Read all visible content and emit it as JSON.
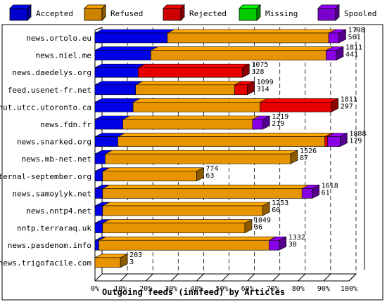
{
  "chart_data": {
    "type": "bar",
    "stacked": true,
    "orientation": "horizontal",
    "title": "",
    "xlabel": "Outgoing feeds (innfeed) by Articles",
    "ylabel": "",
    "xlim": [
      0,
      100
    ],
    "x_unit": "%",
    "x_ticks": [
      "0%",
      "10%",
      "20%",
      "30%",
      "40%",
      "50%",
      "60%",
      "70%",
      "80%",
      "90%",
      "100%"
    ],
    "grid": "vertical dashed",
    "legend_position": "top",
    "categories": [
      "news.ortolo.eu",
      "news.niel.me",
      "news.daedelys.org",
      "feed.usenet-fr.net",
      "nut.utcc.utoronto.ca",
      "news.fdn.fr",
      "news.snarked.org",
      "news.mb-net.net",
      "eternal-september.org",
      "news.samoylyk.net",
      "news.nntp4.net",
      "nntp.terraraq.uk",
      "news.pasdenom.info",
      "news.trigofacile.com"
    ],
    "series": [
      {
        "name": "Accepted",
        "color": "#0000ff",
        "values": [
          28.5,
          22,
          17,
          16,
          15,
          11,
          9,
          4,
          3,
          3,
          3,
          3,
          1.5,
          0
        ]
      },
      {
        "name": "Refused",
        "color": "#ffa500",
        "values": [
          63.5,
          69,
          0,
          39,
          50,
          51,
          81.5,
          73,
          37,
          78.5,
          63,
          56,
          67,
          10
        ]
      },
      {
        "name": "Rejected",
        "color": "#ff0000",
        "values": [
          0,
          0,
          41,
          5,
          28,
          0,
          1,
          0,
          0,
          0,
          0,
          0,
          0,
          0
        ]
      },
      {
        "name": "Missing",
        "color": "#00ff00",
        "values": [
          0,
          0,
          0,
          0,
          0,
          0,
          0,
          0,
          0,
          0,
          0,
          0,
          0,
          0
        ]
      },
      {
        "name": "Spooled",
        "color": "#9900ff",
        "values": [
          4,
          4,
          0,
          0,
          0,
          4,
          5,
          0,
          0,
          4,
          0,
          0,
          4,
          0
        ]
      }
    ],
    "annotations": [
      [
        "1798",
        "561"
      ],
      [
        "1811",
        "441"
      ],
      [
        "1075",
        "328"
      ],
      [
        "1099",
        "314"
      ],
      [
        "1811",
        "297"
      ],
      [
        "1219",
        "219"
      ],
      [
        "1888",
        "179"
      ],
      [
        "1526",
        "87"
      ],
      [
        "774",
        "63"
      ],
      [
        "1618",
        "61"
      ],
      [
        "1253",
        "60"
      ],
      [
        "1049",
        "36"
      ],
      [
        "1332",
        "30"
      ],
      [
        "203",
        "3"
      ]
    ]
  }
}
